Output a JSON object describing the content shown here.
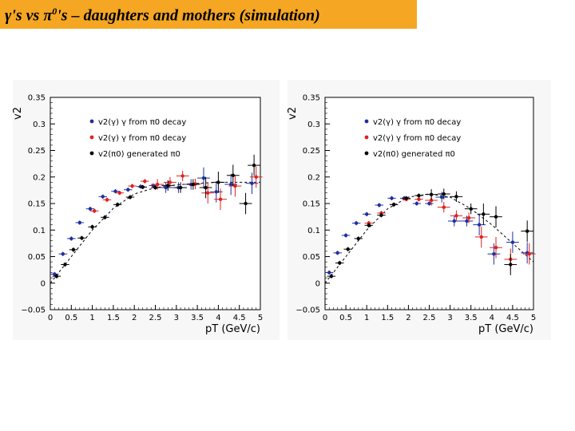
{
  "header": {
    "prefix": "γ's vs π",
    "sup": "0",
    "rest": "'s – daughters and mothers   (simulation)",
    "background": "#f5a623"
  },
  "chart_data": [
    {
      "type": "scatter",
      "ylabel": "v2",
      "xlabel": "pT (GeV/c)",
      "xlim": [
        0,
        5
      ],
      "ylim": [
        -0.05,
        0.35
      ],
      "xticks": [
        "0",
        "0.5",
        "1",
        "1.5",
        "2",
        "2.5",
        "3",
        "3.5",
        "4",
        "4.5",
        "5"
      ],
      "yticks": [
        "−0.05",
        "0",
        "0.05",
        "0.1",
        "0.15",
        "0.2",
        "0.25",
        "0.3",
        "0.35"
      ],
      "legend_position": "upper-left",
      "series": [
        {
          "name": "v2(γ) γ from π0 decay",
          "color": "#1f2f9e",
          "x": [
            0.1,
            0.3,
            0.5,
            0.7,
            0.95,
            1.25,
            1.55,
            1.85,
            2.15,
            2.45,
            2.75,
            3.05,
            3.35,
            3.65,
            3.95,
            4.3,
            4.8
          ],
          "y": [
            0.017,
            0.055,
            0.084,
            0.114,
            0.14,
            0.163,
            0.173,
            0.176,
            0.182,
            0.184,
            0.18,
            0.18,
            0.186,
            0.198,
            0.172,
            0.186,
            0.188
          ]
        },
        {
          "name": "v2(γ) γ from π0 decay",
          "color": "#e02020",
          "x": [
            1.05,
            1.35,
            1.65,
            1.95,
            2.25,
            2.55,
            2.85,
            3.15,
            3.45,
            3.75,
            4.05,
            4.4,
            4.9
          ],
          "y": [
            0.136,
            0.157,
            0.17,
            0.183,
            0.192,
            0.186,
            0.19,
            0.202,
            0.187,
            0.17,
            0.158,
            0.183,
            0.2
          ]
        },
        {
          "name": "v2(π0) generated π0",
          "color": "#000000",
          "x": [
            0.15,
            0.35,
            0.55,
            0.75,
            1.0,
            1.3,
            1.6,
            1.9,
            2.2,
            2.5,
            2.8,
            3.1,
            3.4,
            3.7,
            4.0,
            4.35,
            4.65,
            4.85
          ],
          "y": [
            0.013,
            0.035,
            0.063,
            0.085,
            0.106,
            0.124,
            0.148,
            0.162,
            0.181,
            0.18,
            0.184,
            0.18,
            0.186,
            0.18,
            0.19,
            0.203,
            0.15,
            0.222
          ]
        }
      ],
      "fit_curve": {
        "x": [
          0,
          0.5,
          1,
          1.5,
          2,
          2.5,
          3,
          3.5,
          4,
          4.5,
          5
        ],
        "y": [
          0.0,
          0.05,
          0.1,
          0.141,
          0.168,
          0.18,
          0.185,
          0.188,
          0.19,
          0.19,
          0.19
        ]
      }
    },
    {
      "type": "scatter",
      "ylabel": "v2",
      "xlabel": "pT (GeV/c)",
      "xlim": [
        0,
        5
      ],
      "ylim": [
        -0.05,
        0.35
      ],
      "xticks": [
        "0",
        "0.5",
        "1",
        "1.5",
        "2",
        "2.5",
        "3",
        "3.5",
        "4",
        "4.5",
        "5"
      ],
      "yticks": [
        "−0.05",
        "0",
        "0.05",
        "0.1",
        "0.15",
        "0.2",
        "0.25",
        "0.3",
        "0.35"
      ],
      "legend_position": "upper-left",
      "series": [
        {
          "name": "v2(γ) γ from π0 decay",
          "color": "#1f2f9e",
          "x": [
            0.1,
            0.3,
            0.5,
            0.75,
            1.0,
            1.3,
            1.6,
            1.9,
            2.2,
            2.5,
            2.8,
            3.1,
            3.4,
            3.7,
            4.05,
            4.5,
            4.85
          ],
          "y": [
            0.02,
            0.057,
            0.09,
            0.113,
            0.13,
            0.147,
            0.16,
            0.16,
            0.15,
            0.15,
            0.162,
            0.117,
            0.117,
            0.11,
            0.055,
            0.077,
            0.057
          ]
        },
        {
          "name": "v2(γ) γ from π0 decay",
          "color": "#e02020",
          "x": [
            1.05,
            1.35,
            1.65,
            1.95,
            2.25,
            2.55,
            2.85,
            3.15,
            3.45,
            3.75,
            4.1,
            4.45,
            4.9
          ],
          "y": [
            0.113,
            0.132,
            0.148,
            0.158,
            0.158,
            0.156,
            0.143,
            0.127,
            0.123,
            0.087,
            0.067,
            0.045,
            0.055
          ]
        },
        {
          "name": "v2(π0) generated π0",
          "color": "#000000",
          "x": [
            0.15,
            0.35,
            0.55,
            0.8,
            1.05,
            1.35,
            1.65,
            1.95,
            2.25,
            2.55,
            2.85,
            3.15,
            3.5,
            3.8,
            4.1,
            4.45,
            4.85
          ],
          "y": [
            0.013,
            0.038,
            0.064,
            0.084,
            0.109,
            0.128,
            0.148,
            0.16,
            0.165,
            0.167,
            0.168,
            0.163,
            0.14,
            0.13,
            0.125,
            0.035,
            0.098
          ]
        }
      ],
      "fit_curve": {
        "x": [
          0,
          0.5,
          1,
          1.5,
          2,
          2.5,
          3,
          3.5,
          4,
          4.5,
          5
        ],
        "y": [
          0.0,
          0.05,
          0.1,
          0.14,
          0.162,
          0.168,
          0.162,
          0.14,
          0.11,
          0.075,
          0.04
        ]
      }
    }
  ]
}
